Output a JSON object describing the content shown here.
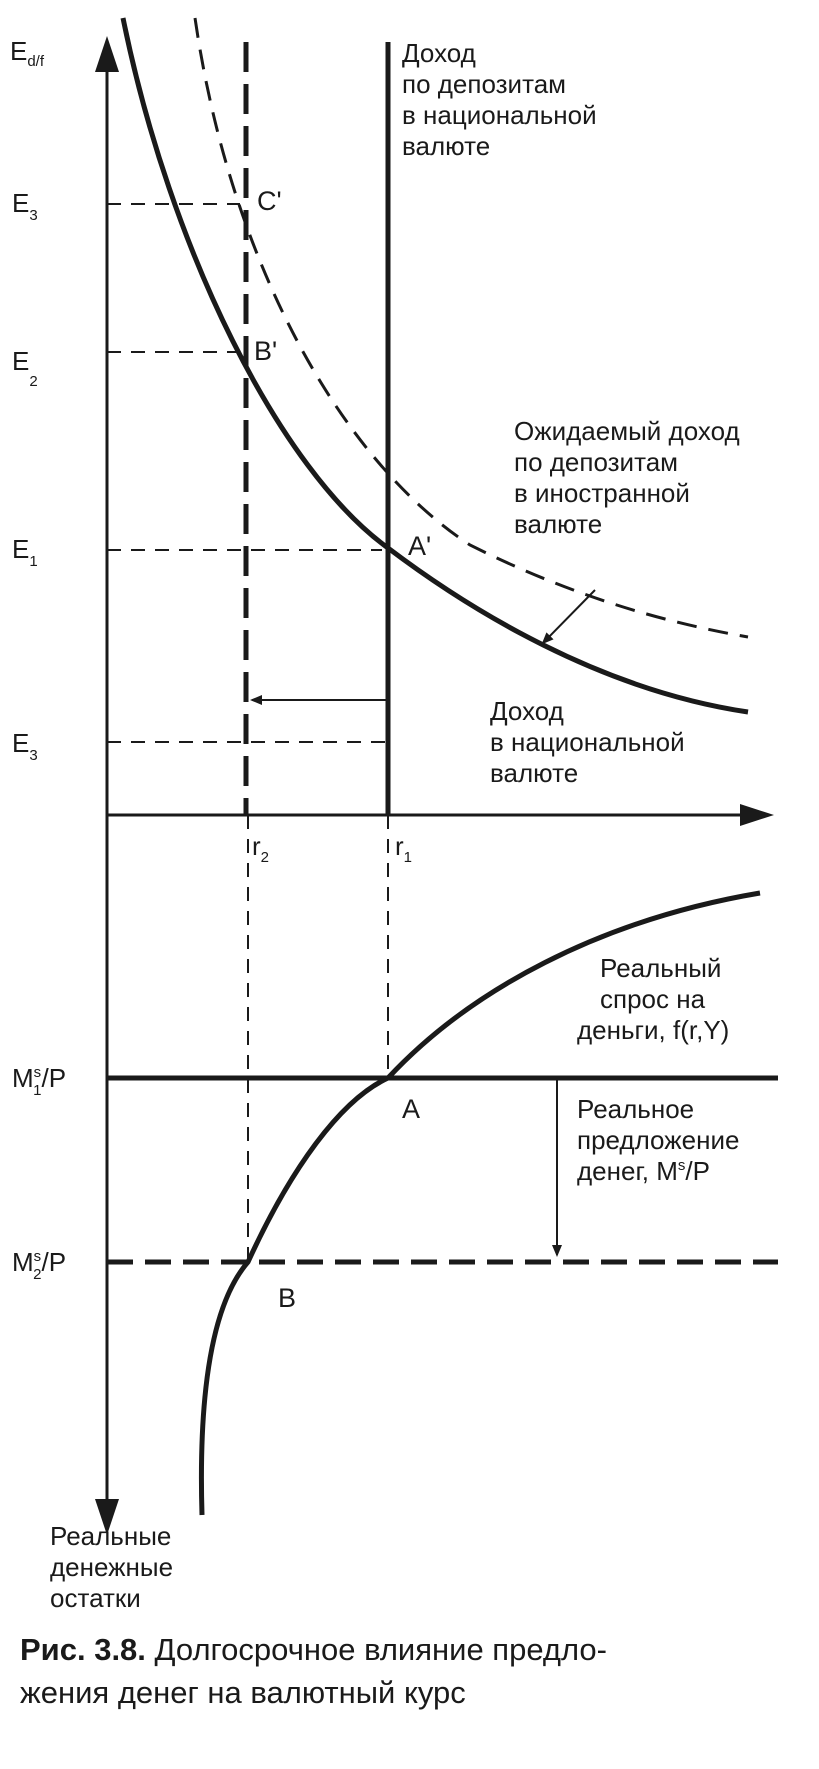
{
  "labels": {
    "e_axis": "E",
    "e_axis_sub": "d/f",
    "e3_top": "E",
    "e3_top_sub": "3",
    "e2": "E",
    "e2_sub": "2",
    "e1": "E",
    "e1_sub": "1",
    "e3_bottom": "E",
    "e3_bottom_sub": "3",
    "r2": "r",
    "r2_sub": "2",
    "r1": "r",
    "r1_sub": "1",
    "point_c": "C'",
    "point_b_prime": "B'",
    "point_a_prime": "A'",
    "point_a": "A",
    "point_b": "B",
    "ms1_m": "M",
    "ms1_sup": "s",
    "ms1_sub": "1",
    "ms1_tail": "/P",
    "ms2_m": "M",
    "ms2_sup": "s",
    "ms2_sub": "2",
    "ms2_tail": "/P"
  },
  "annotations": {
    "domestic_return_top": [
      "Доход",
      "по депозитам",
      "в национальной",
      "валюте"
    ],
    "expected_foreign_return": [
      "Ожидаемый доход",
      "по депозитам",
      "в иностранной",
      "валюте"
    ],
    "domestic_return_mid": [
      "Доход",
      "в национальной",
      "валюте"
    ],
    "money_demand": [
      "Реальный",
      "спрос на",
      "деньги, f(r,Y)"
    ],
    "money_supply_lines": [
      "Реальное",
      "предложение"
    ],
    "money_supply_last": "денег, M",
    "money_supply_sup": "s",
    "money_supply_tail": "/P",
    "real_balances": [
      "Реальные",
      "денежные",
      "остатки"
    ]
  },
  "caption": {
    "number": "Рис. 3.8.",
    "line1": "Долгосрочное влияние предло-",
    "line2": "жения денег на валютный курс"
  }
}
